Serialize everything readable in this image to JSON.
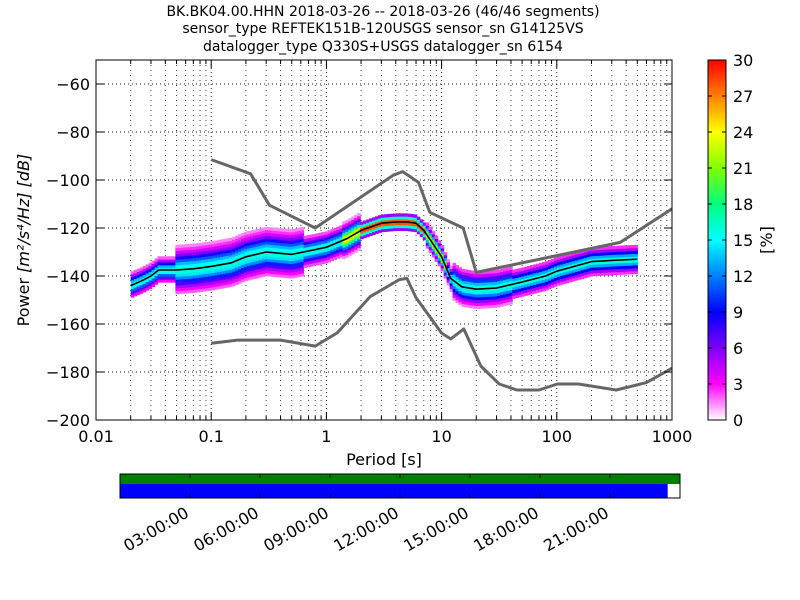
{
  "title_lines": [
    "BK.BK04.00.HHN   2018-03-26 -- 2018-03-26  (46/46 segments)",
    "sensor_type REFTEK151B-120USGS sensor_sn G14125VS",
    "datalogger_type Q330S+USGS datalogger_sn 6154"
  ],
  "chart_data": {
    "type": "heatmap",
    "xlabel": "Period [s]",
    "ylabel_prefix": "Power ",
    "ylabel_units": "[m²/s⁴/Hz] [dB]",
    "x_scale": "log",
    "xlim": [
      0.01,
      1000
    ],
    "ylim": [
      -200,
      -50
    ],
    "x_ticks": [
      0.01,
      0.1,
      1,
      10,
      100,
      1000
    ],
    "x_tick_labels": [
      "0.01",
      "0.1",
      "1",
      "10",
      "100",
      "1000"
    ],
    "y_ticks": [
      -200,
      -180,
      -160,
      -140,
      -120,
      -100,
      -80,
      -60
    ],
    "y_tick_labels": [
      "−200",
      "−180",
      "−160",
      "−140",
      "−120",
      "−100",
      "−80",
      "−60"
    ],
    "grid": true,
    "colorbar": {
      "label": "[%]",
      "range": [
        0,
        30
      ],
      "ticks": [
        0,
        3,
        6,
        9,
        12,
        15,
        18,
        21,
        24,
        27,
        30
      ],
      "tick_labels": [
        "0",
        "3",
        "6",
        "9",
        "12",
        "15",
        "18",
        "21",
        "24",
        "27",
        "30"
      ]
    },
    "noise_models": {
      "high": {
        "color": "#666666",
        "x": [
          0.1,
          0.22,
          0.32,
          0.8,
          3.8,
          4.6,
          6.3,
          7.9,
          15.4,
          20,
          354.8,
          1000
        ],
        "y": [
          -91.5,
          -97.4,
          -110.5,
          -120.0,
          -98.0,
          -96.5,
          -101.0,
          -113.5,
          -120.0,
          -138.5,
          -126.0,
          -112.0
        ]
      },
      "low": {
        "color": "#666666",
        "x": [
          0.1,
          0.17,
          0.4,
          0.8,
          1.24,
          2.4,
          4.3,
          5.0,
          6.0,
          10.0,
          12.0,
          15.6,
          21.9,
          31.6,
          45.0,
          70.0,
          101.0,
          154.0,
          328.0,
          600.0,
          1000.0
        ],
        "y": [
          -168.0,
          -166.7,
          -166.7,
          -169.2,
          -163.7,
          -148.6,
          -141.5,
          -141.0,
          -149.0,
          -163.8,
          -166.2,
          -162.1,
          -177.5,
          -185.0,
          -187.5,
          -187.5,
          -185.0,
          -185.0,
          -187.5,
          -184.4,
          -178.4
        ]
      }
    },
    "mode": {
      "color": "#000000",
      "x": [
        0.02,
        0.025,
        0.03,
        0.035,
        0.05,
        0.07,
        0.1,
        0.15,
        0.2,
        0.3,
        0.5,
        0.8,
        1.0,
        1.5,
        2.0,
        3.0,
        4.0,
        5.0,
        6.0,
        7.0,
        8.0,
        10.0,
        12.0,
        15.0,
        20.0,
        30.0,
        50.0,
        80.0,
        100.0,
        200.0,
        300.0,
        500.0
      ],
      "y": [
        -144.0,
        -142.0,
        -140.0,
        -137.5,
        -137.5,
        -137.0,
        -136.0,
        -134.5,
        -132.0,
        -130.0,
        -131.0,
        -129.0,
        -128.0,
        -124.5,
        -121.0,
        -118.0,
        -117.5,
        -117.5,
        -118.0,
        -121.0,
        -125.0,
        -132.0,
        -141.0,
        -144.5,
        -145.5,
        -145.0,
        -142.5,
        -140.0,
        -138.0,
        -134.0,
        -133.5,
        -133.0
      ]
    }
  },
  "timeline": {
    "labels": [
      "03:00:00",
      "06:00:00",
      "09:00:00",
      "12:00:00",
      "15:00:00",
      "18:00:00",
      "21:00:00"
    ],
    "label_hours": [
      3,
      6,
      9,
      12,
      15,
      18,
      21
    ],
    "span_hours": 24,
    "coverage_green": [
      0,
      1
    ],
    "coverage_blue": [
      0,
      0.978
    ],
    "green_color": "#008000",
    "blue_color": "#0000ff"
  }
}
